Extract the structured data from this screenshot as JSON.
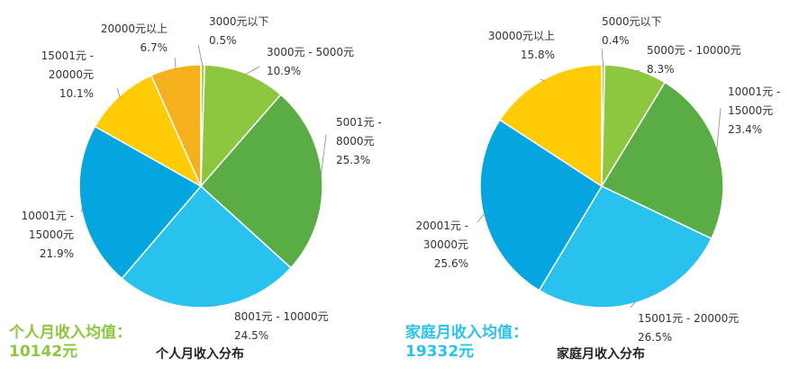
{
  "chart_data": [
    {
      "type": "pie",
      "title": "个人月收入分布",
      "mean_label": "个人月收入均值：",
      "mean_value": "10142元",
      "slices": [
        {
          "label": [
            "3000元以下"
          ],
          "pct_text": "0.5%",
          "value": 0.5,
          "color": "#a9cf4a"
        },
        {
          "label": [
            "3000元 - 5000元"
          ],
          "pct_text": "10.9%",
          "value": 10.9,
          "color": "#8dc63f"
        },
        {
          "label": [
            "5001元 -",
            "8000元"
          ],
          "pct_text": "25.3%",
          "value": 25.3,
          "color": "#5aac44"
        },
        {
          "label": [
            "8001元 - 10000元"
          ],
          "pct_text": "24.5%",
          "value": 24.5,
          "color": "#29c1ee"
        },
        {
          "label": [
            "10001元 -",
            "15000元"
          ],
          "pct_text": "21.9%",
          "value": 21.9,
          "color": "#05a6e0"
        },
        {
          "label": [
            "15001元 -",
            "20000元"
          ],
          "pct_text": "10.1%",
          "value": 10.1,
          "color": "#ffcb05"
        },
        {
          "label": [
            "20000元以上"
          ],
          "pct_text": "6.7%",
          "value": 6.7,
          "color": "#f6b01b"
        }
      ]
    },
    {
      "type": "pie",
      "title": "家庭月收入分布",
      "mean_label": "家庭月收入均值：",
      "mean_value": "19332元",
      "slices": [
        {
          "label": [
            "5000元以下"
          ],
          "pct_text": "0.4%",
          "value": 0.4,
          "color": "#a9cf4a"
        },
        {
          "label": [
            "5000元 - 10000元"
          ],
          "pct_text": "8.3%",
          "value": 8.3,
          "color": "#8dc63f"
        },
        {
          "label": [
            "10001元 -",
            "15000元"
          ],
          "pct_text": "23.4%",
          "value": 23.4,
          "color": "#5aac44"
        },
        {
          "label": [
            "15001元 - 20000元"
          ],
          "pct_text": "26.5%",
          "value": 26.5,
          "color": "#29c1ee"
        },
        {
          "label": [
            "20001元 -",
            "30000元"
          ],
          "pct_text": "25.6%",
          "value": 25.6,
          "color": "#05a6e0"
        },
        {
          "label": [
            "30000元以上"
          ],
          "pct_text": "15.8%",
          "value": 15.8,
          "color": "#ffcb05"
        }
      ]
    }
  ]
}
